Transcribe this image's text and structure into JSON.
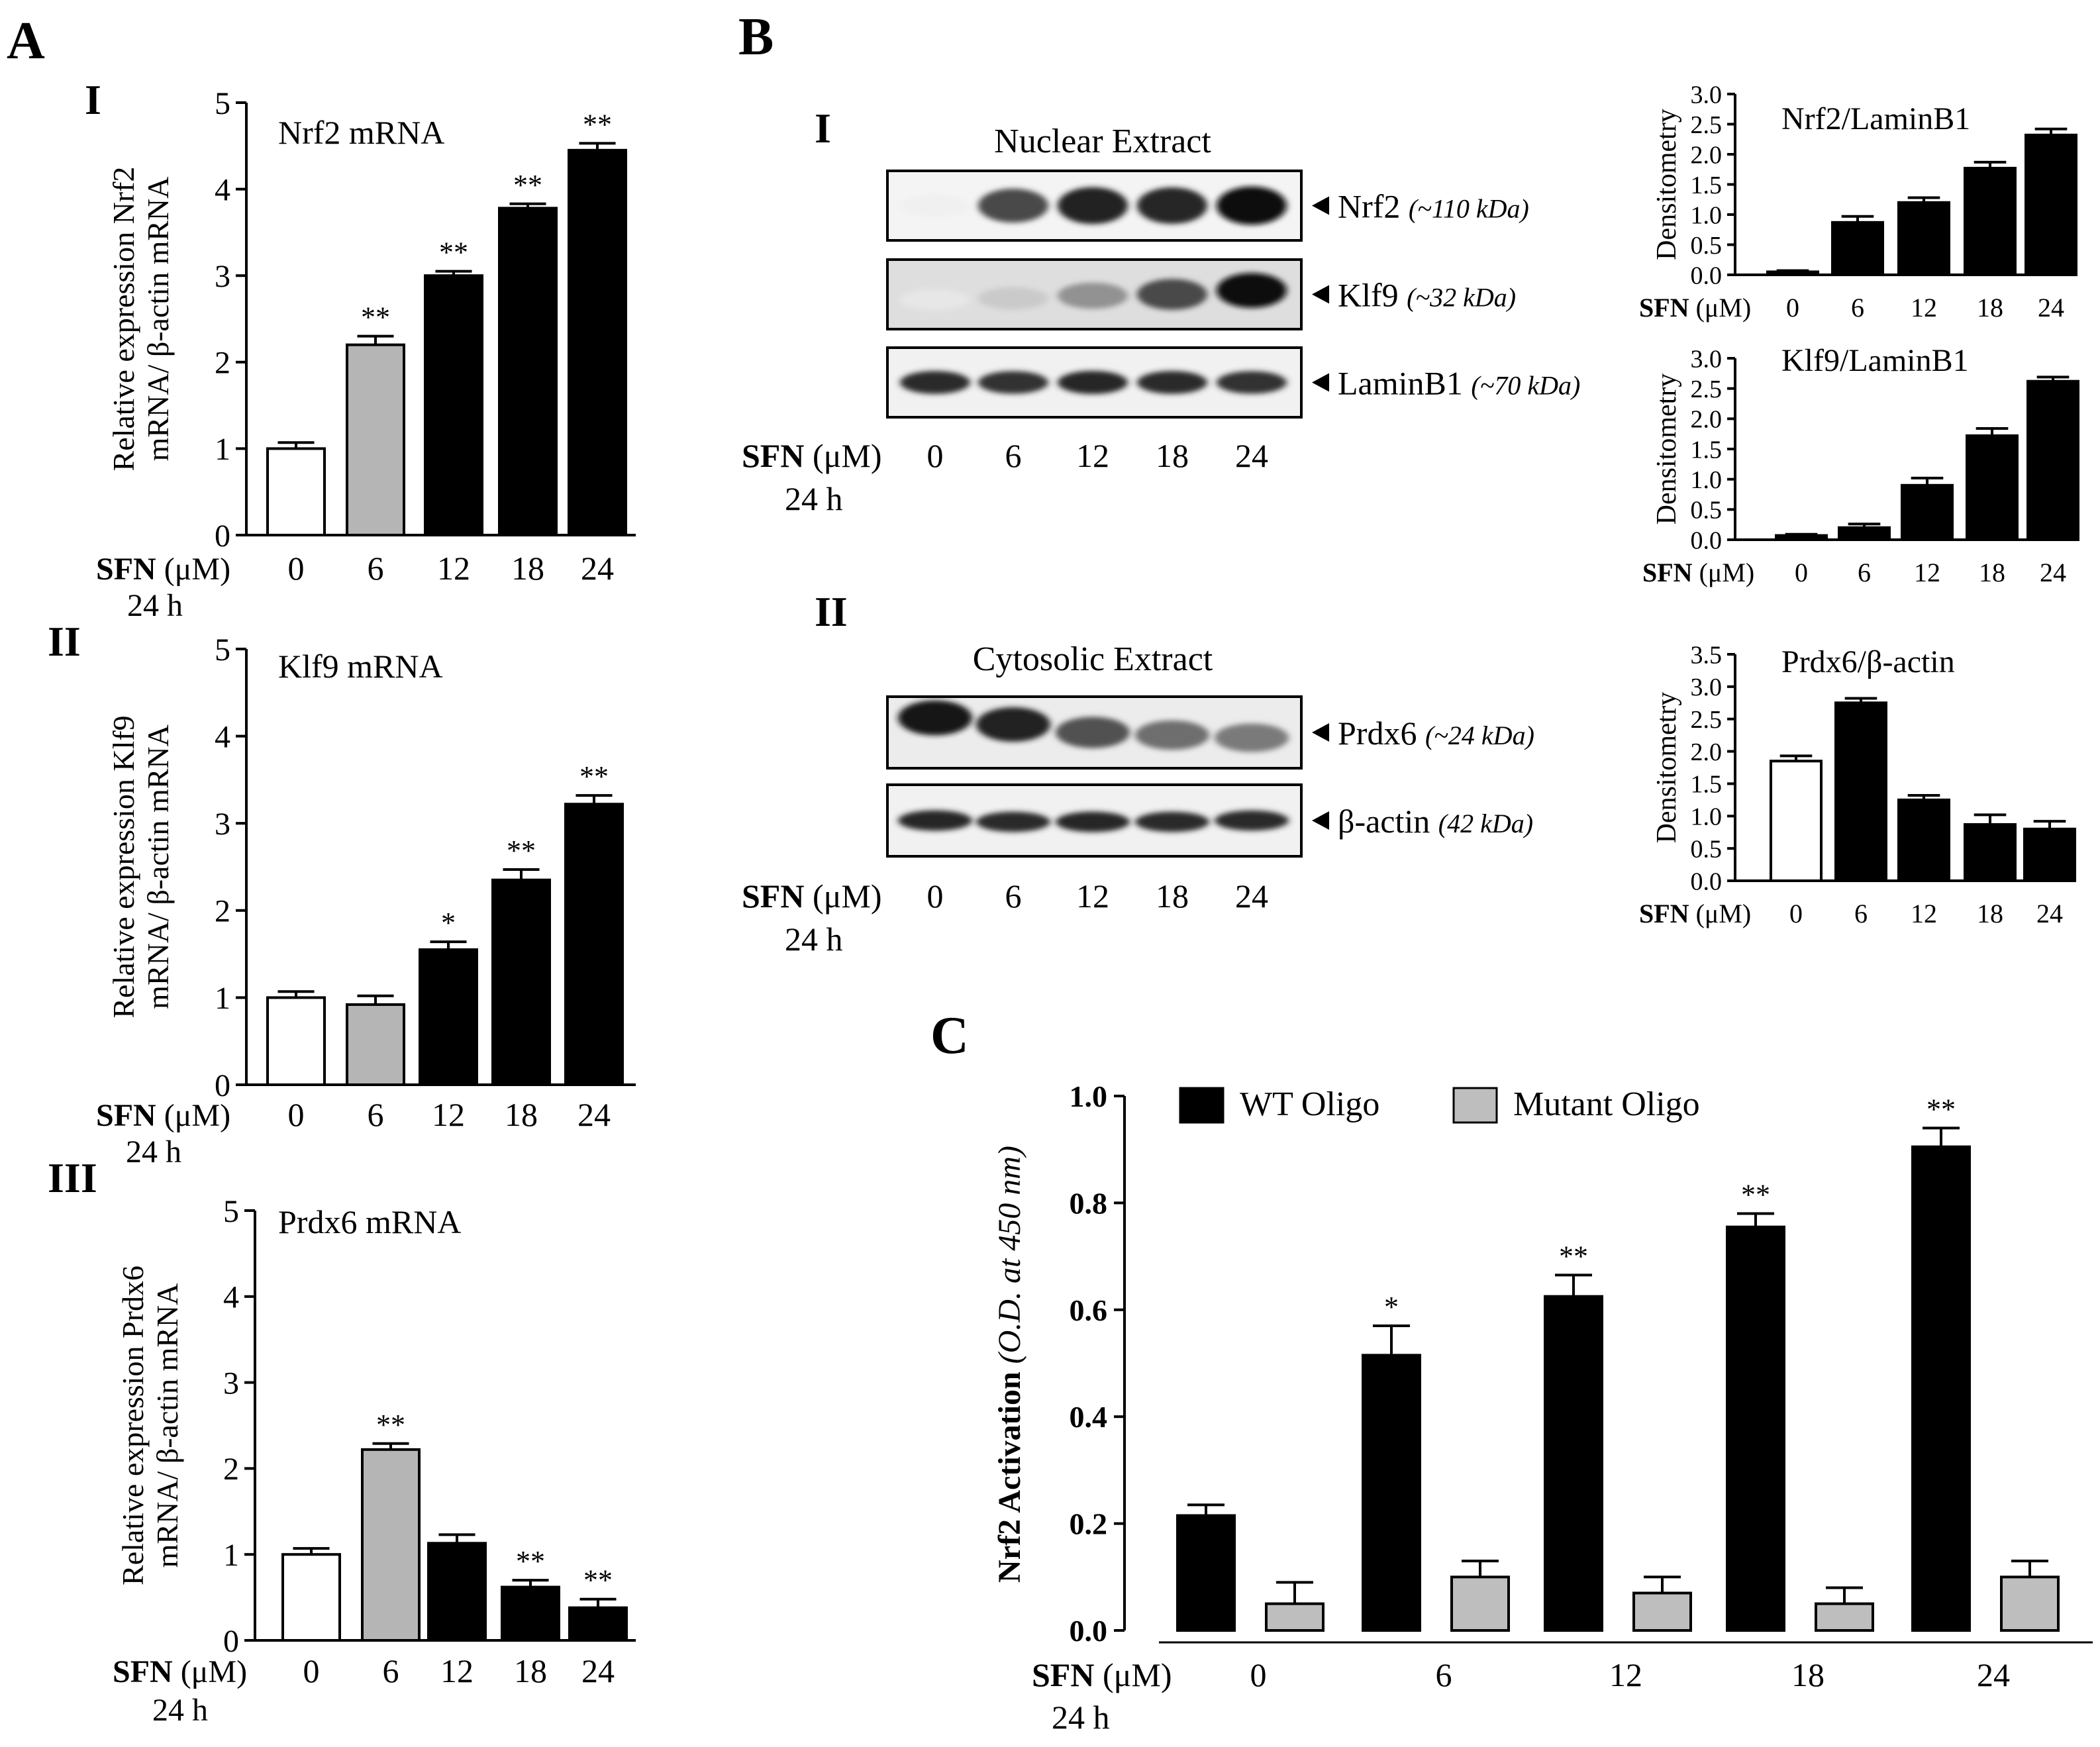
{
  "figure": {
    "panel_labels": [
      "A",
      "B",
      "C"
    ],
    "sub_labels": {
      "A_I": "I",
      "A_II": "II",
      "A_III": "III",
      "B_I": "I",
      "B_II": "II"
    },
    "treatment": {
      "bold": "SFN",
      "unit": "(μM)",
      "time": "24 h"
    },
    "colors": {
      "white": "#ffffff",
      "gray": "#b5b5b5",
      "black": "#000000",
      "mutant": "#bebebe"
    }
  },
  "chart_data": [
    {
      "id": "A_I",
      "type": "bar",
      "title": "Nrf2 mRNA",
      "ylabel_lines": [
        "Relative expression  Nrf2",
        "mRNA/ β-actin mRNA"
      ],
      "xlabel": "SFN (μM)",
      "categories": [
        "0",
        "6",
        "12",
        "18",
        "24"
      ],
      "values": [
        1.0,
        2.2,
        3.0,
        3.78,
        4.45
      ],
      "errors": [
        0.07,
        0.1,
        0.05,
        0.05,
        0.08
      ],
      "significance": [
        "",
        "**",
        "**",
        "**",
        "**"
      ],
      "bar_colors": [
        "white",
        "gray",
        "black",
        "black",
        "black"
      ],
      "ylim": [
        0,
        5
      ],
      "yticks": [
        "0",
        "1",
        "2",
        "3",
        "4",
        "5"
      ]
    },
    {
      "id": "A_II",
      "type": "bar",
      "title": "Klf9 mRNA",
      "ylabel_lines": [
        "Relative expression  Klf9",
        "mRNA/ β-actin mRNA"
      ],
      "xlabel": "SFN (μM)",
      "categories": [
        "0",
        "6",
        "12",
        "18",
        "24"
      ],
      "values": [
        1.0,
        0.92,
        1.55,
        2.35,
        3.22
      ],
      "errors": [
        0.07,
        0.1,
        0.09,
        0.12,
        0.1
      ],
      "significance": [
        "",
        "",
        "*",
        "**",
        "**"
      ],
      "bar_colors": [
        "white",
        "gray",
        "black",
        "black",
        "black"
      ],
      "ylim": [
        0,
        5
      ],
      "yticks": [
        "0",
        "1",
        "2",
        "3",
        "4",
        "5"
      ]
    },
    {
      "id": "A_III",
      "type": "bar",
      "title": "Prdx6 mRNA",
      "ylabel_lines": [
        "Relative expression  Prdx6",
        "mRNA/ β-actin mRNA"
      ],
      "xlabel": "SFN (μM)",
      "categories": [
        "0",
        "6",
        "12",
        "18",
        "24"
      ],
      "values": [
        1.0,
        2.22,
        1.13,
        0.62,
        0.38
      ],
      "errors": [
        0.07,
        0.07,
        0.1,
        0.08,
        0.1
      ],
      "significance": [
        "",
        "**",
        "",
        "**",
        "**"
      ],
      "bar_colors": [
        "white",
        "gray",
        "black",
        "black",
        "black"
      ],
      "ylim": [
        0,
        5
      ],
      "yticks": [
        "0",
        "1",
        "2",
        "3",
        "4",
        "5"
      ]
    },
    {
      "id": "B_I_Nrf2",
      "type": "bar",
      "title": "Nrf2/LaminB1",
      "ylabel": "Densitometry",
      "xlabel": "SFN (μM)",
      "categories": [
        "0",
        "6",
        "12",
        "18",
        "24"
      ],
      "values": [
        0.05,
        0.87,
        1.2,
        1.77,
        2.32
      ],
      "errors": [
        0.02,
        0.1,
        0.08,
        0.1,
        0.1
      ],
      "significance": [
        "",
        "",
        "",
        "",
        ""
      ],
      "bar_colors": [
        "black",
        "black",
        "black",
        "black",
        "black"
      ],
      "ylim": [
        0,
        3
      ],
      "yticks": [
        "0.0",
        "0.5",
        "1.0",
        "1.5",
        "2.0",
        "2.5",
        "3.0"
      ]
    },
    {
      "id": "B_I_Klf9",
      "type": "bar",
      "title": "Klf9/LaminB1",
      "ylabel": "Densitometry",
      "xlabel": "SFN (μM)",
      "categories": [
        "0",
        "6",
        "12",
        "18",
        "24"
      ],
      "values": [
        0.07,
        0.2,
        0.9,
        1.72,
        2.62
      ],
      "errors": [
        0.02,
        0.06,
        0.12,
        0.12,
        0.07
      ],
      "significance": [
        "",
        "",
        "",
        "",
        ""
      ],
      "bar_colors": [
        "black",
        "black",
        "black",
        "black",
        "black"
      ],
      "ylim": [
        0,
        3
      ],
      "yticks": [
        "0.0",
        "0.5",
        "1.0",
        "1.5",
        "2.0",
        "2.5",
        "3.0"
      ]
    },
    {
      "id": "B_II_Prdx6",
      "type": "bar",
      "title": "Prdx6/β-actin",
      "ylabel": "Densitometry",
      "xlabel": "SFN (μM)",
      "categories": [
        "0",
        "6",
        "12",
        "18",
        "24"
      ],
      "values": [
        1.85,
        2.75,
        1.25,
        0.87,
        0.8
      ],
      "errors": [
        0.08,
        0.07,
        0.07,
        0.15,
        0.12
      ],
      "significance": [
        "",
        "",
        "",
        "",
        ""
      ],
      "bar_colors": [
        "white",
        "black",
        "black",
        "black",
        "black"
      ],
      "ylim": [
        0,
        3.5
      ],
      "yticks": [
        "0.0",
        "0.5",
        "1.0",
        "1.5",
        "2.0",
        "2.5",
        "3.0",
        "3.5"
      ]
    },
    {
      "id": "C",
      "type": "bar",
      "ylabel_bold": "Nrf2 Activation",
      "ylabel_italic": "(O.D. at 450 nm)",
      "xlabel": "SFN (μM)",
      "categories": [
        "0",
        "6",
        "12",
        "18",
        "24"
      ],
      "series": [
        {
          "name": "WT Oligo",
          "values": [
            0.215,
            0.515,
            0.625,
            0.755,
            0.905
          ],
          "errors": [
            0.02,
            0.055,
            0.04,
            0.025,
            0.035
          ],
          "significance": [
            "",
            "*",
            "**",
            "**",
            "**"
          ],
          "color": "black"
        },
        {
          "name": "Mutant Oligo",
          "values": [
            0.05,
            0.1,
            0.07,
            0.05,
            0.1
          ],
          "errors": [
            0.04,
            0.03,
            0.03,
            0.03,
            0.03
          ],
          "color": "mutant"
        }
      ],
      "ylim": [
        0,
        1.0
      ],
      "yticks": [
        "0.0",
        "0.2",
        "0.4",
        "0.6",
        "0.8",
        "1.0"
      ]
    }
  ],
  "blots": {
    "nuclear": {
      "title": "Nuclear Extract",
      "lanes": [
        "0",
        "6",
        "12",
        "18",
        "24"
      ],
      "rows": [
        {
          "name": "Nrf2",
          "size": "(~110 kDa)",
          "intensity": [
            0.06,
            0.75,
            0.92,
            0.9,
            1.0
          ],
          "thick": 0.55
        },
        {
          "name": "Klf9",
          "size": "(~32 kDa)",
          "intensity": [
            0.1,
            0.22,
            0.45,
            0.75,
            1.0
          ],
          "thick": 0.5
        },
        {
          "name": "LaminB1",
          "size": "(~70 kDa)",
          "intensity": [
            0.88,
            0.85,
            0.9,
            0.88,
            0.85
          ],
          "thick": 0.35
        }
      ]
    },
    "cytosolic": {
      "title": "Cytosolic Extract",
      "lanes": [
        "0",
        "6",
        "12",
        "18",
        "24"
      ],
      "rows": [
        {
          "name": "Prdx6",
          "size": "(~24 kDa)",
          "intensity": [
            0.95,
            0.92,
            0.72,
            0.6,
            0.55
          ],
          "thick": 0.5
        },
        {
          "name": "β-actin",
          "size": "(42 kDa)",
          "intensity": [
            0.9,
            0.88,
            0.9,
            0.88,
            0.88
          ],
          "thick": 0.3
        }
      ]
    }
  }
}
